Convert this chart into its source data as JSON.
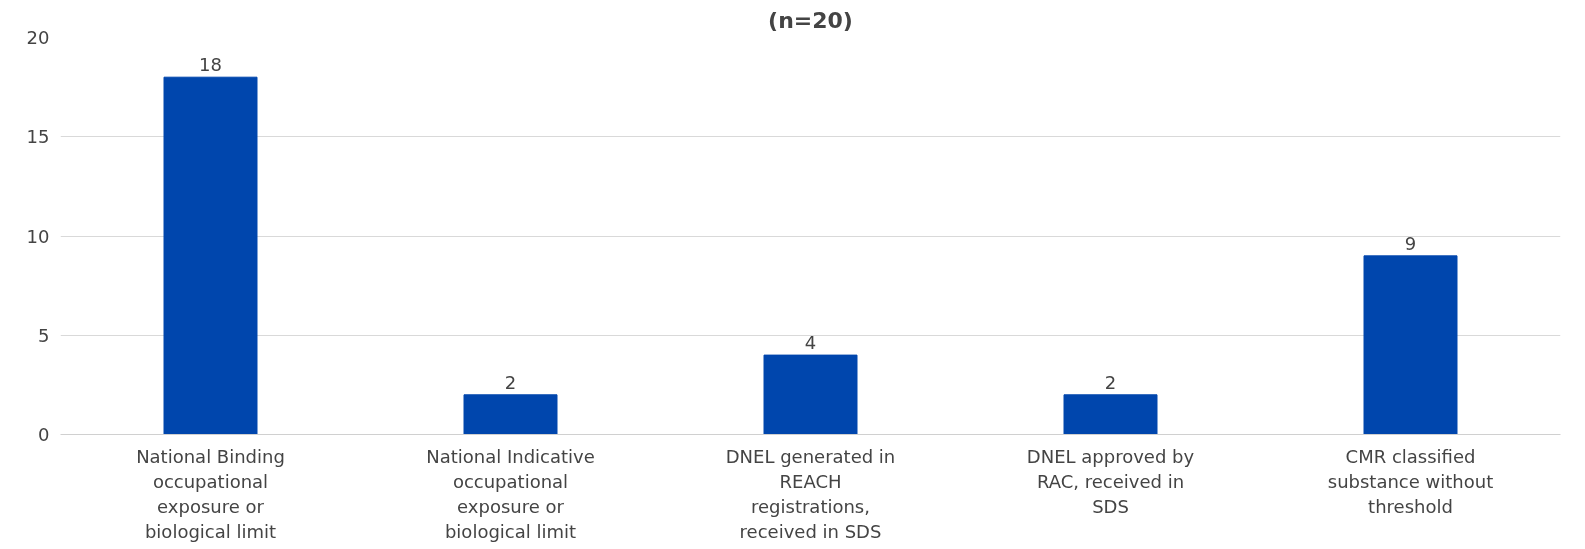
{
  "chart_data": {
    "type": "bar",
    "title": "(n=20)",
    "categories": [
      "National Binding occupational exposure or biological limit",
      "National Indicative occupational exposure or biological limit",
      "DNEL generated in REACH registrations, received in SDS",
      "DNEL approved by RAC, received in SDS",
      "CMR classified substance without threshold"
    ],
    "values": [
      18,
      2,
      4,
      2,
      9
    ],
    "color": "#0046ad",
    "ylim": [
      0,
      20
    ],
    "yticks": [
      0,
      5,
      10,
      15,
      20
    ],
    "grid": "y",
    "data_labels": true
  }
}
